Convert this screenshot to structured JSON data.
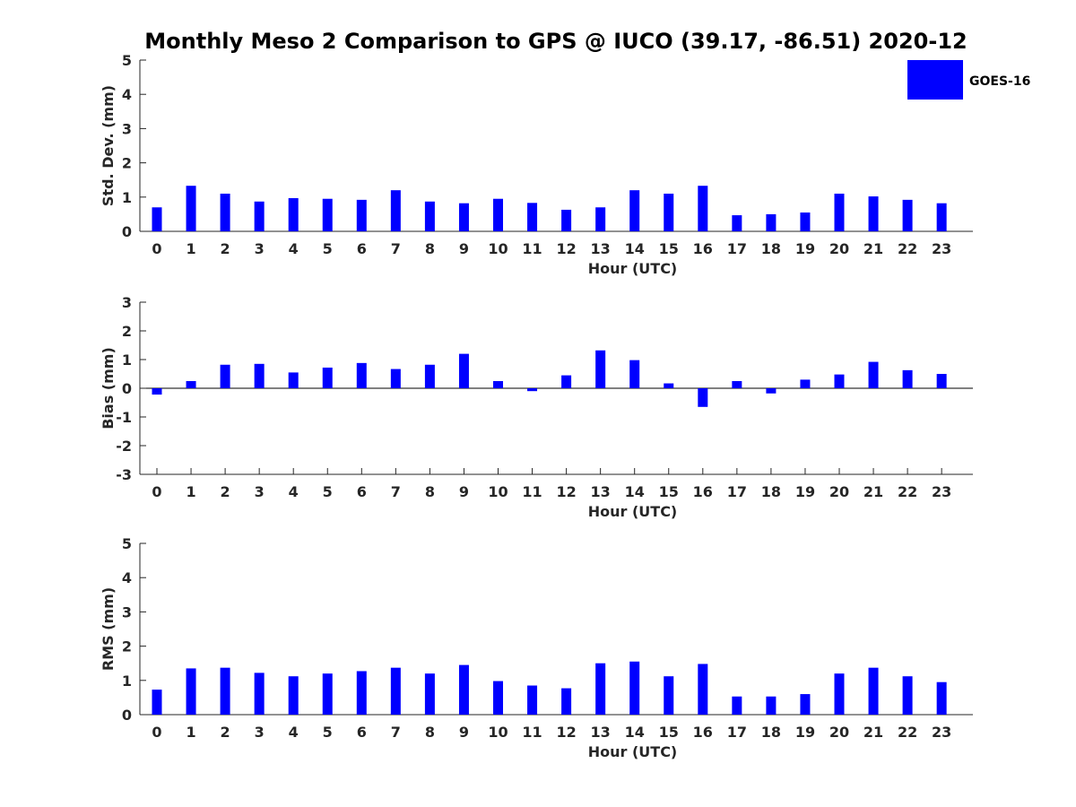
{
  "title": "Monthly Meso 2 Comparison to GPS @ IUCO (39.17, -86.51) 2020-12",
  "chart_data": [
    {
      "type": "bar",
      "name": "std-dev",
      "xlabel": "Hour (UTC)",
      "ylabel": "Std. Dev. (mm)",
      "ylim": [
        0,
        5
      ],
      "yticks": [
        0,
        1,
        2,
        3,
        4,
        5
      ],
      "zero_line": false,
      "categories": [
        "0",
        "1",
        "2",
        "3",
        "4",
        "5",
        "6",
        "7",
        "8",
        "9",
        "10",
        "11",
        "12",
        "13",
        "14",
        "15",
        "16",
        "17",
        "18",
        "19",
        "20",
        "21",
        "22",
        "23"
      ],
      "series": [
        {
          "name": "GOES-16",
          "color": "#0000ff",
          "values": [
            0.7,
            1.33,
            1.1,
            0.87,
            0.97,
            0.95,
            0.92,
            1.2,
            0.87,
            0.82,
            0.95,
            0.83,
            0.63,
            0.7,
            1.2,
            1.1,
            1.33,
            0.47,
            0.5,
            0.55,
            1.1,
            1.02,
            0.92,
            0.82
          ]
        }
      ]
    },
    {
      "type": "bar",
      "name": "bias",
      "xlabel": "Hour (UTC)",
      "ylabel": "Bias (mm)",
      "ylim": [
        -3,
        3
      ],
      "yticks": [
        -3,
        -2,
        -1,
        0,
        1,
        2,
        3
      ],
      "zero_line": true,
      "categories": [
        "0",
        "1",
        "2",
        "3",
        "4",
        "5",
        "6",
        "7",
        "8",
        "9",
        "10",
        "11",
        "12",
        "13",
        "14",
        "15",
        "16",
        "17",
        "18",
        "19",
        "20",
        "21",
        "22",
        "23"
      ],
      "series": [
        {
          "name": "GOES-16",
          "color": "#0000ff",
          "values": [
            -0.22,
            0.25,
            0.82,
            0.85,
            0.55,
            0.72,
            0.88,
            0.67,
            0.82,
            1.2,
            0.25,
            -0.1,
            0.45,
            1.32,
            0.98,
            0.17,
            -0.65,
            0.25,
            -0.18,
            0.3,
            0.48,
            0.92,
            0.63,
            0.5
          ]
        }
      ]
    },
    {
      "type": "bar",
      "name": "rms",
      "xlabel": "Hour (UTC)",
      "ylabel": "RMS (mm)",
      "ylim": [
        0,
        5
      ],
      "yticks": [
        0,
        1,
        2,
        3,
        4,
        5
      ],
      "zero_line": false,
      "categories": [
        "0",
        "1",
        "2",
        "3",
        "4",
        "5",
        "6",
        "7",
        "8",
        "9",
        "10",
        "11",
        "12",
        "13",
        "14",
        "15",
        "16",
        "17",
        "18",
        "19",
        "20",
        "21",
        "22",
        "23"
      ],
      "series": [
        {
          "name": "GOES-16",
          "color": "#0000ff",
          "values": [
            0.73,
            1.35,
            1.37,
            1.22,
            1.12,
            1.2,
            1.27,
            1.37,
            1.2,
            1.45,
            0.98,
            0.85,
            0.77,
            1.5,
            1.55,
            1.12,
            1.48,
            0.53,
            0.53,
            0.6,
            1.2,
            1.37,
            1.12,
            0.95
          ]
        }
      ]
    }
  ],
  "legend": {
    "label": "GOES-16",
    "color": "#0000ff",
    "position": "top-right"
  }
}
